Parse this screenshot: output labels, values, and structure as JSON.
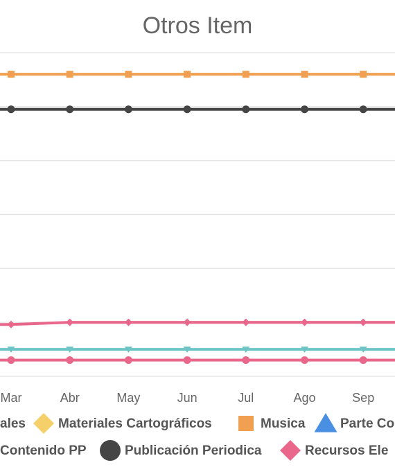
{
  "chart_data": {
    "type": "line",
    "title": "Otros Item",
    "categories": [
      "Mar",
      "Abr",
      "May",
      "Jun",
      "Jul",
      "Ago",
      "Sep"
    ],
    "ylim": [
      0,
      6
    ],
    "grid": true,
    "legend_position": "bottom",
    "series": [
      {
        "name": "Musica",
        "values": [
          5.6,
          5.6,
          5.6,
          5.6,
          5.6,
          5.6,
          5.6
        ],
        "color": "#F0A050",
        "marker": "square"
      },
      {
        "name": "Publicación Periodica",
        "values": [
          4.95,
          4.95,
          4.95,
          4.95,
          4.95,
          4.95,
          4.95
        ],
        "color": "#454545",
        "marker": "circle"
      },
      {
        "name": "",
        "values": [
          0.96,
          1.0,
          1.0,
          1.0,
          1.0,
          1.0,
          1.0
        ],
        "color": "#E8678A",
        "marker": "diamond"
      },
      {
        "name": "",
        "values": [
          0.5,
          0.5,
          0.5,
          0.5,
          0.5,
          0.5,
          0.5
        ],
        "color": "#6CC4C4",
        "marker": "triangle-down"
      },
      {
        "name": "",
        "values": [
          0.3,
          0.3,
          0.3,
          0.3,
          0.3,
          0.3,
          0.3
        ],
        "color": "#E8678A",
        "marker": "circle"
      }
    ],
    "legend": [
      {
        "label": "ales",
        "marker": "none",
        "color": "#555555"
      },
      {
        "label": "Materiales Cartográficos",
        "marker": "diamond",
        "color": "#F5D06A"
      },
      {
        "label": "Musica",
        "marker": "square",
        "color": "#F0A050"
      },
      {
        "label": "Parte Co",
        "marker": "triangle",
        "color": "#4A90E2"
      },
      {
        "label": "Contenido PP",
        "marker": "none",
        "color": "#555555"
      },
      {
        "label": "Publicación Periodica",
        "marker": "circle",
        "color": "#454545"
      },
      {
        "label": "Recursos Ele",
        "marker": "diamond",
        "color": "#E8678A"
      }
    ]
  }
}
